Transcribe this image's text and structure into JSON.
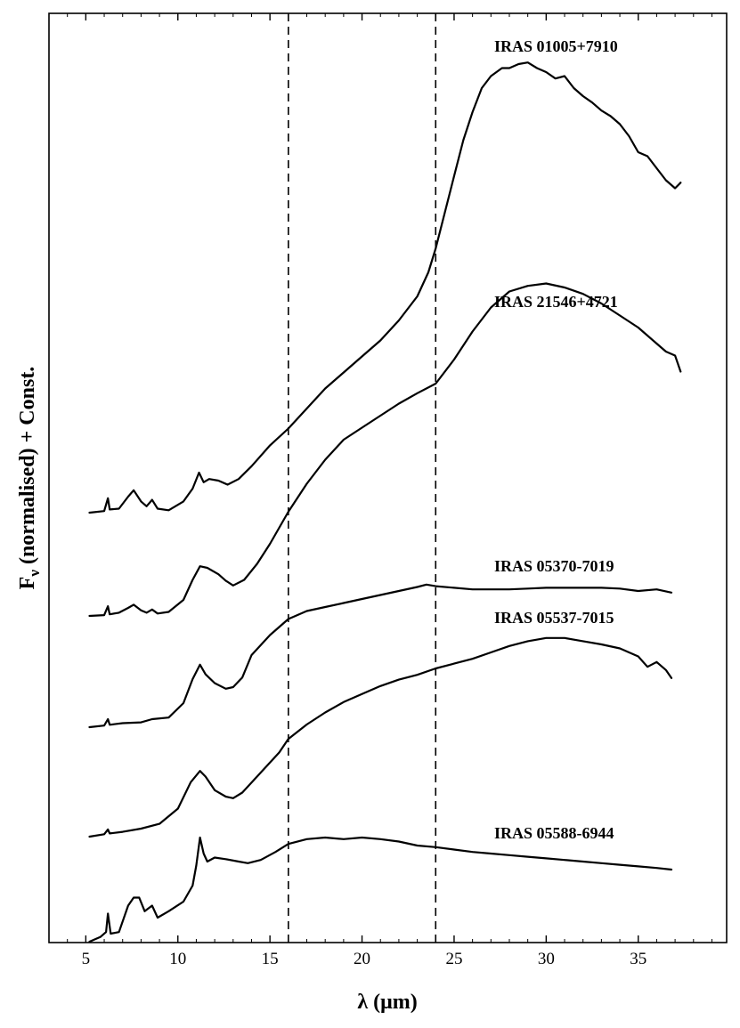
{
  "chart_data": {
    "type": "line",
    "title": "",
    "xlabel": "λ (μm)",
    "ylabel": "Fν (normalised) + Const.",
    "ylabel_parts": {
      "main": "F",
      "sub": "ν",
      "rest": " (normalised) + Const."
    },
    "xlim": [
      3,
      39.8
    ],
    "xticks": [
      5,
      10,
      15,
      20,
      25,
      30,
      35
    ],
    "yticks": [],
    "grid": false,
    "legend": "none",
    "reference_lines": [
      16,
      24
    ],
    "line_color": "#000000",
    "series": [
      {
        "name": "IRAS 01005+7910",
        "x": [
          5.2,
          6.0,
          6.2,
          6.3,
          6.8,
          7.3,
          7.6,
          8.0,
          8.3,
          8.6,
          8.9,
          9.5,
          10.3,
          10.8,
          11.15,
          11.4,
          11.7,
          12.2,
          12.7,
          13.3,
          14.0,
          15.0,
          16.0,
          17.0,
          18.0,
          19.0,
          20.0,
          21.0,
          22.0,
          23.0,
          23.6,
          24.0,
          24.5,
          25.0,
          25.5,
          26.0,
          26.5,
          27.0,
          27.6,
          28.0,
          28.5,
          29.0,
          29.5,
          30.0,
          30.5,
          31.0,
          31.5,
          32.0,
          32.5,
          33.0,
          33.5,
          34.0,
          34.5,
          35.0,
          35.5,
          36.0,
          36.5,
          37.0,
          37.3
        ],
        "y": [
          0.0,
          0.02,
          0.18,
          0.04,
          0.05,
          0.2,
          0.28,
          0.14,
          0.08,
          0.16,
          0.05,
          0.03,
          0.14,
          0.3,
          0.5,
          0.38,
          0.42,
          0.4,
          0.35,
          0.42,
          0.58,
          0.84,
          1.05,
          1.3,
          1.55,
          1.75,
          1.95,
          2.15,
          2.4,
          2.7,
          3.0,
          3.3,
          3.75,
          4.2,
          4.65,
          5.0,
          5.3,
          5.45,
          5.55,
          5.55,
          5.6,
          5.62,
          5.55,
          5.5,
          5.42,
          5.45,
          5.3,
          5.2,
          5.12,
          5.02,
          4.95,
          4.85,
          4.7,
          4.5,
          4.45,
          4.3,
          4.15,
          4.05,
          4.12
        ]
      },
      {
        "name": "IRAS 21546+4721",
        "x": [
          5.2,
          6.0,
          6.2,
          6.3,
          6.8,
          7.3,
          7.6,
          8.0,
          8.3,
          8.6,
          8.9,
          9.5,
          10.3,
          10.8,
          11.2,
          11.6,
          12.2,
          12.6,
          13.0,
          13.6,
          14.3,
          15.0,
          16.0,
          17.0,
          18.0,
          19.0,
          20.0,
          21.0,
          22.0,
          23.0,
          24.0,
          25.0,
          26.0,
          27.0,
          28.0,
          29.0,
          30.0,
          31.0,
          32.0,
          33.0,
          34.0,
          35.0,
          36.0,
          36.5,
          37.0,
          37.3
        ],
        "y": [
          0.0,
          0.01,
          0.12,
          0.02,
          0.04,
          0.1,
          0.14,
          0.07,
          0.04,
          0.08,
          0.03,
          0.05,
          0.2,
          0.45,
          0.62,
          0.6,
          0.52,
          0.44,
          0.38,
          0.45,
          0.65,
          0.9,
          1.3,
          1.65,
          1.95,
          2.2,
          2.35,
          2.5,
          2.65,
          2.78,
          2.9,
          3.2,
          3.55,
          3.85,
          4.05,
          4.12,
          4.15,
          4.1,
          4.02,
          3.9,
          3.75,
          3.6,
          3.4,
          3.3,
          3.25,
          3.05
        ]
      },
      {
        "name": "IRAS 05370-7019",
        "x": [
          5.2,
          6.0,
          6.2,
          6.3,
          7.0,
          8.0,
          8.6,
          9.5,
          10.3,
          10.8,
          11.2,
          11.5,
          12.0,
          12.6,
          13.0,
          13.5,
          14.0,
          15.0,
          16.0,
          17.0,
          18.0,
          19.0,
          20.0,
          21.0,
          22.0,
          23.0,
          23.5,
          24.0,
          25.0,
          26.0,
          27.0,
          28.0,
          29.0,
          30.0,
          31.0,
          32.0,
          33.0,
          34.0,
          35.0,
          36.0,
          36.8
        ],
        "y": [
          0.0,
          0.02,
          0.1,
          0.03,
          0.05,
          0.06,
          0.1,
          0.12,
          0.3,
          0.6,
          0.78,
          0.66,
          0.55,
          0.48,
          0.5,
          0.62,
          0.9,
          1.15,
          1.35,
          1.45,
          1.5,
          1.55,
          1.6,
          1.65,
          1.7,
          1.75,
          1.78,
          1.76,
          1.74,
          1.72,
          1.72,
          1.72,
          1.73,
          1.74,
          1.74,
          1.74,
          1.74,
          1.73,
          1.7,
          1.72,
          1.68
        ]
      },
      {
        "name": "IRAS 05537-7015",
        "x": [
          5.2,
          6.0,
          6.2,
          6.3,
          7.0,
          8.0,
          9.0,
          10.0,
          10.7,
          11.2,
          11.5,
          12.0,
          12.6,
          13.0,
          13.5,
          14.5,
          15.5,
          16.0,
          17.0,
          18.0,
          19.0,
          20.0,
          21.0,
          22.0,
          23.0,
          24.0,
          25.0,
          26.0,
          27.0,
          28.0,
          29.0,
          30.0,
          31.0,
          32.0,
          33.0,
          34.0,
          35.0,
          35.5,
          36.0,
          36.5,
          36.8
        ],
        "y": [
          0.0,
          0.03,
          0.09,
          0.04,
          0.06,
          0.1,
          0.16,
          0.35,
          0.68,
          0.82,
          0.75,
          0.58,
          0.5,
          0.48,
          0.55,
          0.8,
          1.05,
          1.22,
          1.4,
          1.55,
          1.68,
          1.78,
          1.88,
          1.96,
          2.02,
          2.1,
          2.16,
          2.22,
          2.3,
          2.38,
          2.44,
          2.48,
          2.48,
          2.44,
          2.4,
          2.35,
          2.25,
          2.12,
          2.18,
          2.08,
          1.98
        ]
      },
      {
        "name": "IRAS 05588-6944",
        "x": [
          5.2,
          5.8,
          6.1,
          6.2,
          6.35,
          6.8,
          7.3,
          7.6,
          7.9,
          8.2,
          8.6,
          8.9,
          9.5,
          10.3,
          10.8,
          11.0,
          11.2,
          11.4,
          11.6,
          12.0,
          12.6,
          13.3,
          13.8,
          14.5,
          15.3,
          16.0,
          17.0,
          18.0,
          19.0,
          20.0,
          21.0,
          22.0,
          23.0,
          24.0,
          25.0,
          26.0,
          27.0,
          28.0,
          29.0,
          30.0,
          31.0,
          32.0,
          33.0,
          34.0,
          35.0,
          36.0,
          36.8
        ],
        "y": [
          0.0,
          0.06,
          0.12,
          0.35,
          0.1,
          0.12,
          0.45,
          0.55,
          0.55,
          0.38,
          0.45,
          0.3,
          0.38,
          0.5,
          0.7,
          0.95,
          1.3,
          1.1,
          1.0,
          1.05,
          1.03,
          1.0,
          0.98,
          1.02,
          1.12,
          1.22,
          1.28,
          1.3,
          1.28,
          1.3,
          1.28,
          1.25,
          1.2,
          1.18,
          1.15,
          1.12,
          1.1,
          1.08,
          1.06,
          1.04,
          1.02,
          1.0,
          0.98,
          0.96,
          0.94,
          0.92,
          0.9
        ]
      }
    ]
  }
}
